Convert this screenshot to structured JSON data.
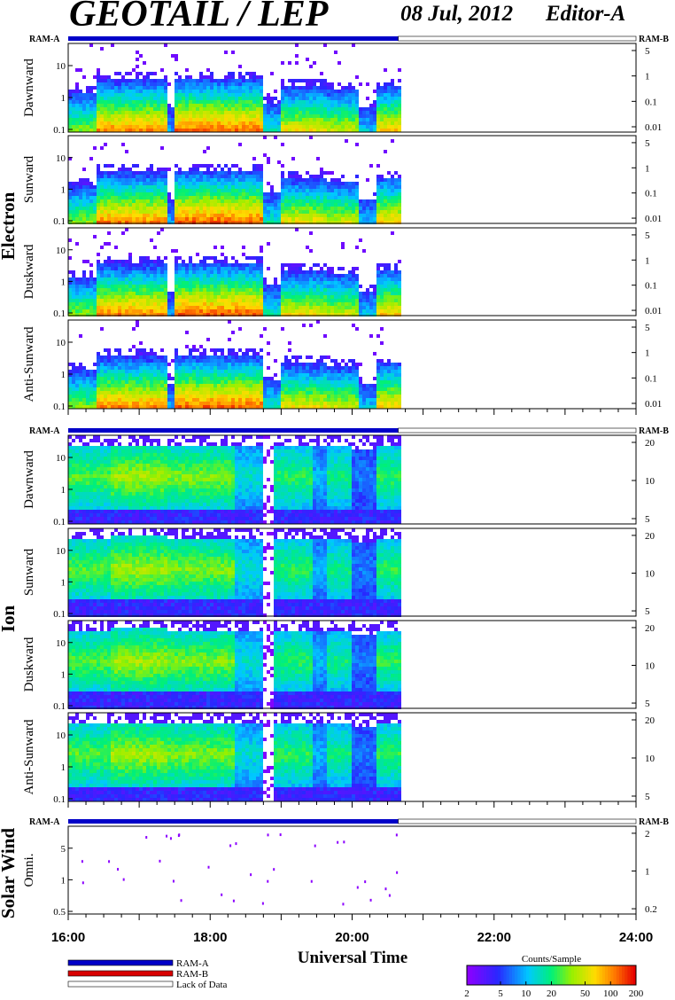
{
  "header": {
    "title": "GEOTAIL / LEP",
    "date": "08 Jul, 2012",
    "editor": "Editor-A"
  },
  "chart_data": {
    "type": "heatmap",
    "x_axis": {
      "label": "Universal Time",
      "range_hours": [
        16,
        24
      ],
      "ticks": [
        "16:00",
        "18:00",
        "20:00",
        "22:00",
        "24:00"
      ],
      "data_end_hours": 20.65
    },
    "ram_labels": {
      "left": "RAM-A",
      "right": "RAM-B"
    },
    "groups": [
      {
        "name": "Electron",
        "panels": [
          {
            "name": "Dawnward",
            "left_ticks": [
              "10",
              "1",
              "0.1"
            ],
            "right_ticks": [
              "5",
              "1",
              "0.1",
              "0.01"
            ]
          },
          {
            "name": "Sunward",
            "left_ticks": [
              "10",
              "1",
              "0.1"
            ],
            "right_ticks": [
              "5",
              "1",
              "0.1",
              "0.01"
            ]
          },
          {
            "name": "Duskward",
            "left_ticks": [
              "10",
              "1",
              "0.1"
            ],
            "right_ticks": [
              "5",
              "1",
              "0.1",
              "0.01"
            ]
          },
          {
            "name": "Anti-Sunward",
            "left_ticks": [
              "10",
              "1",
              "0.1"
            ],
            "right_ticks": [
              "5",
              "1",
              "0.1",
              "0.01"
            ]
          }
        ]
      },
      {
        "name": "Ion",
        "panels": [
          {
            "name": "Dawnward",
            "left_ticks": [
              "10",
              "1",
              "0.1"
            ],
            "right_ticks": [
              "20",
              "10",
              "5"
            ]
          },
          {
            "name": "Sunward",
            "left_ticks": [
              "10",
              "1",
              "0.1"
            ],
            "right_ticks": [
              "20",
              "10",
              "5"
            ]
          },
          {
            "name": "Duskward",
            "left_ticks": [
              "10",
              "1",
              "0.1"
            ],
            "right_ticks": [
              "20",
              "10",
              "5"
            ]
          },
          {
            "name": "Anti-Sunward",
            "left_ticks": [
              "10",
              "1",
              "0.1"
            ],
            "right_ticks": [
              "20",
              "10",
              "5"
            ]
          }
        ]
      },
      {
        "name": "Solar Wind",
        "panels": [
          {
            "name": "Omni.",
            "left_ticks": [
              "5",
              "1",
              "0.5"
            ],
            "right_ticks": [
              "2",
              "1",
              "0.2"
            ]
          }
        ]
      }
    ],
    "legend": {
      "items": [
        {
          "label": "RAM-A",
          "color": "#0000c8"
        },
        {
          "label": "RAM-B",
          "color": "#d80000"
        },
        {
          "label": "Lack of Data",
          "color": "#ffffff"
        }
      ]
    },
    "colorbar": {
      "title": "Counts/Sample",
      "ticks": [
        "2",
        "5",
        "10",
        "20",
        "50",
        "100",
        "200"
      ],
      "scale": "log",
      "range": [
        2,
        200
      ]
    }
  }
}
